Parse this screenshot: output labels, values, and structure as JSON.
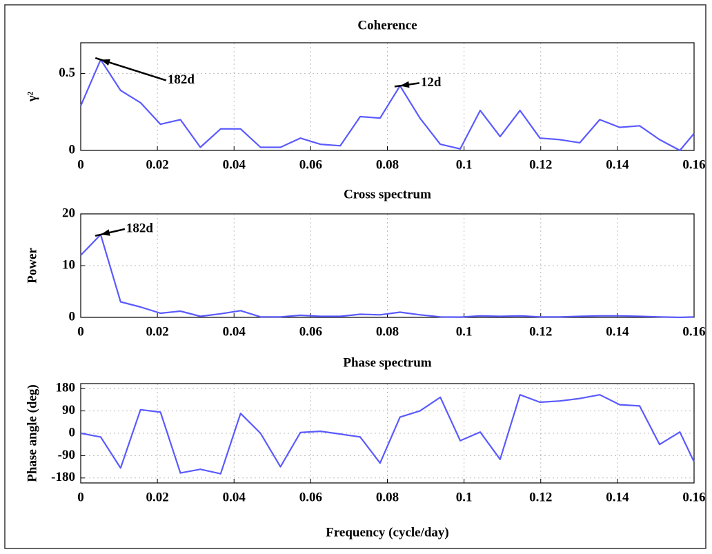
{
  "chart_data": [
    {
      "type": "line",
      "title": "Coherence",
      "ylabel": "γ²",
      "color": "#5a5aff",
      "x": [
        0,
        0.0052,
        0.0104,
        0.0156,
        0.0208,
        0.026,
        0.0312,
        0.0365,
        0.0417,
        0.0469,
        0.0521,
        0.0573,
        0.0625,
        0.0677,
        0.0729,
        0.0781,
        0.0833,
        0.0885,
        0.0938,
        0.099,
        0.1042,
        0.1094,
        0.1146,
        0.1198,
        0.125,
        0.1302,
        0.1354,
        0.1406,
        0.1458,
        0.151,
        0.1563,
        0.16
      ],
      "values": [
        0.29,
        0.59,
        0.39,
        0.31,
        0.17,
        0.2,
        0.02,
        0.14,
        0.14,
        0.02,
        0.02,
        0.08,
        0.04,
        0.03,
        0.22,
        0.21,
        0.42,
        0.21,
        0.04,
        0.01,
        0.26,
        0.09,
        0.26,
        0.08,
        0.07,
        0.05,
        0.2,
        0.15,
        0.16,
        0.07,
        0,
        0.11
      ],
      "xlim": [
        0,
        0.16
      ],
      "xticks": [
        0,
        0.02,
        0.04,
        0.06,
        0.08,
        0.1,
        0.12,
        0.14,
        0.16
      ],
      "ylim": [
        0,
        0.7
      ],
      "yticks": [
        0,
        0.5
      ],
      "grid": true,
      "annotations": [
        {
          "text": "182d",
          "x": 0.0052,
          "y": 0.59
        },
        {
          "text": "12d",
          "x": 0.0833,
          "y": 0.42
        }
      ]
    },
    {
      "type": "line",
      "title": "Cross spectrum",
      "ylabel": "Power",
      "color": "#5a5aff",
      "x": [
        0,
        0.0052,
        0.0104,
        0.0156,
        0.0208,
        0.026,
        0.0312,
        0.0365,
        0.0417,
        0.0469,
        0.0521,
        0.0573,
        0.0625,
        0.0677,
        0.0729,
        0.0781,
        0.0833,
        0.0885,
        0.0938,
        0.099,
        0.1042,
        0.1094,
        0.1146,
        0.1198,
        0.125,
        0.1302,
        0.1354,
        0.1406,
        0.1458,
        0.151,
        0.1563,
        0.16
      ],
      "values": [
        12,
        16,
        3,
        2,
        0.8,
        1.2,
        0.2,
        0.7,
        1.3,
        0.1,
        0.1,
        0.4,
        0.2,
        0.2,
        0.6,
        0.5,
        1,
        0.5,
        0.1,
        0.05,
        0.3,
        0.2,
        0.3,
        0.1,
        0.1,
        0.2,
        0.3,
        0.3,
        0.2,
        0.1,
        0,
        0.1
      ],
      "xlim": [
        0,
        0.16
      ],
      "xticks": [
        0,
        0.02,
        0.04,
        0.06,
        0.08,
        0.1,
        0.12,
        0.14,
        0.16
      ],
      "ylim": [
        0,
        20
      ],
      "yticks": [
        0,
        10,
        20
      ],
      "grid": true,
      "annotations": [
        {
          "text": "182d",
          "x": 0.0052,
          "y": 16
        }
      ]
    },
    {
      "type": "line",
      "title": "Phase spectrum",
      "ylabel": "Phase angle (deg)",
      "xlabel": "Frequency (cycle/day)",
      "color": "#5a5aff",
      "x": [
        0,
        0.0052,
        0.0104,
        0.0156,
        0.0208,
        0.026,
        0.0312,
        0.0365,
        0.0417,
        0.0469,
        0.0521,
        0.0573,
        0.0625,
        0.0677,
        0.0729,
        0.0781,
        0.0833,
        0.0885,
        0.0938,
        0.099,
        0.1042,
        0.1094,
        0.1146,
        0.1198,
        0.125,
        0.1302,
        0.1354,
        0.1406,
        0.1458,
        0.151,
        0.1563,
        0.16
      ],
      "values": [
        0,
        -15,
        -140,
        95,
        85,
        -160,
        -145,
        -163,
        80,
        0,
        -135,
        3,
        8,
        -3,
        -15,
        -120,
        65,
        90,
        145,
        -30,
        5,
        -105,
        155,
        125,
        130,
        140,
        155,
        115,
        110,
        -45,
        5,
        -115
      ],
      "xlim": [
        0,
        0.16
      ],
      "xticks": [
        0,
        0.02,
        0.04,
        0.06,
        0.08,
        0.1,
        0.12,
        0.14,
        0.16
      ],
      "ylim": [
        -200,
        200
      ],
      "yticks": [
        -180,
        -90,
        0,
        90,
        180
      ],
      "grid": true
    }
  ]
}
